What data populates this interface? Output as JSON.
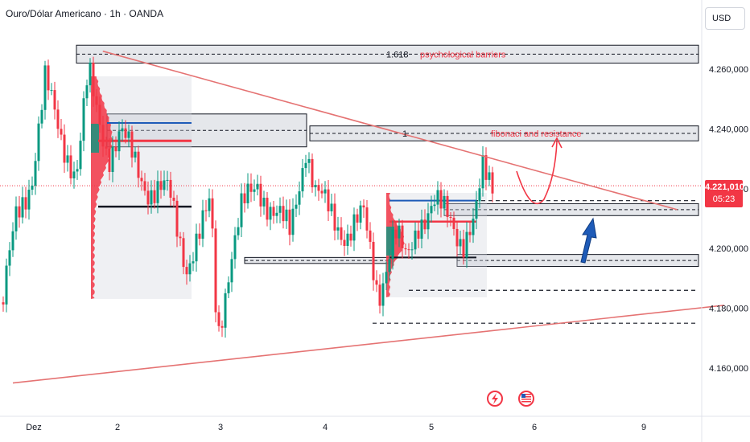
{
  "header": {
    "title": "Ouro/Dólar Americano · 1h · OANDA",
    "currency_button": "USD"
  },
  "last_price": {
    "value": "4.221,010",
    "countdown": "05:23"
  },
  "colors": {
    "up": "#089981",
    "down": "#f23645",
    "trendline": "#e57373",
    "annotation": "#f23645",
    "arrow": "#1e5bb8",
    "profile_up": "#089981",
    "profile_down": "#f23645"
  },
  "events": [
    "lightning-icon",
    "us-flag-icon"
  ],
  "chart_data": {
    "type": "candlestick",
    "title": "Ouro/Dólar Americano · 1h · OANDA",
    "ylim": [
      4152,
      4274
    ],
    "y_ticks": [
      "4.260,000",
      "4.240,000",
      "4.220,000",
      "4.200,000",
      "4.180,000",
      "4.160,000"
    ],
    "y_tick_values": [
      4260,
      4240,
      4220,
      4200,
      4180,
      4160
    ],
    "x_ticks": [
      "Dez",
      "2",
      "3",
      "4",
      "5",
      "6",
      "9"
    ],
    "annotations": [
      "1.618",
      "psychological barriers",
      "1",
      "fibonaci and resistance"
    ],
    "zones": [
      {
        "name": "psychological barriers",
        "low": 4262,
        "high": 4268
      },
      {
        "name": "fibonaci and resistance",
        "low": 4236,
        "high": 4241
      },
      {
        "name": "support-1",
        "low": 4211,
        "high": 4215
      },
      {
        "name": "support-2",
        "low": 4194,
        "high": 4198
      },
      {
        "name": "left-range",
        "low": 4234,
        "high": 4245
      },
      {
        "name": "mid-range",
        "low": 4195,
        "high": 4197
      }
    ],
    "levels": [
      4216,
      4186,
      4175
    ],
    "trendlines": [
      {
        "name": "descending",
        "from": [
          0.86,
          4266
        ],
        "to": [
          6.35,
          4213
        ]
      },
      {
        "name": "ascending",
        "from": [
          0.0,
          4155
        ],
        "to": [
          6.8,
          4181
        ]
      }
    ]
  }
}
